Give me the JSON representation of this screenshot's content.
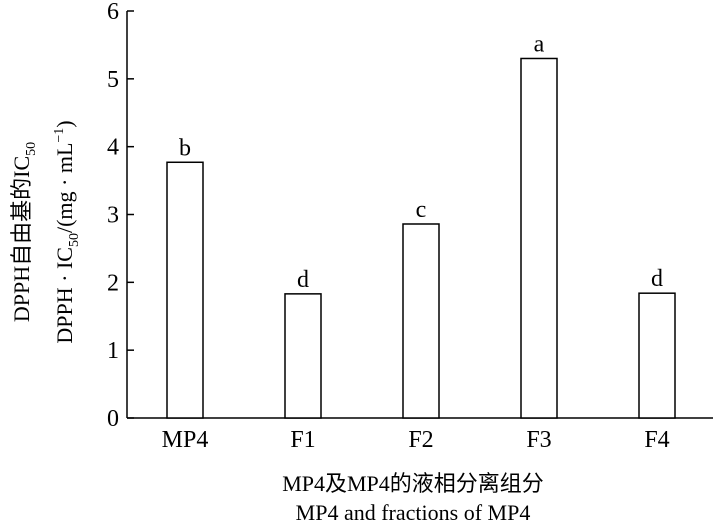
{
  "chart_data": {
    "type": "bar",
    "categories": [
      "MP4",
      "F1",
      "F2",
      "F3",
      "F4"
    ],
    "values": [
      3.77,
      1.83,
      2.86,
      5.3,
      1.84
    ],
    "significance_letters": [
      "b",
      "d",
      "c",
      "a",
      "d"
    ],
    "ylim": [
      0,
      6
    ],
    "yticks": [
      "0",
      "1",
      "2",
      "3",
      "4",
      "5",
      "6"
    ],
    "ylabel_line1": "DPPH自由基的IC",
    "ylabel_line1_sub": "50",
    "ylabel_line2_a": "DPPH · IC",
    "ylabel_line2_sub": "50",
    "ylabel_line2_b": "/(mg · mL",
    "ylabel_line2_sup": "−1",
    "ylabel_line2_c": ")",
    "xlabel_line1": "MP4及MP4的液相分离组分",
    "xlabel_line2": "MP4 and fractions of MP4",
    "grid": false,
    "bar_fill": "#ffffff",
    "bar_stroke": "#000000"
  }
}
